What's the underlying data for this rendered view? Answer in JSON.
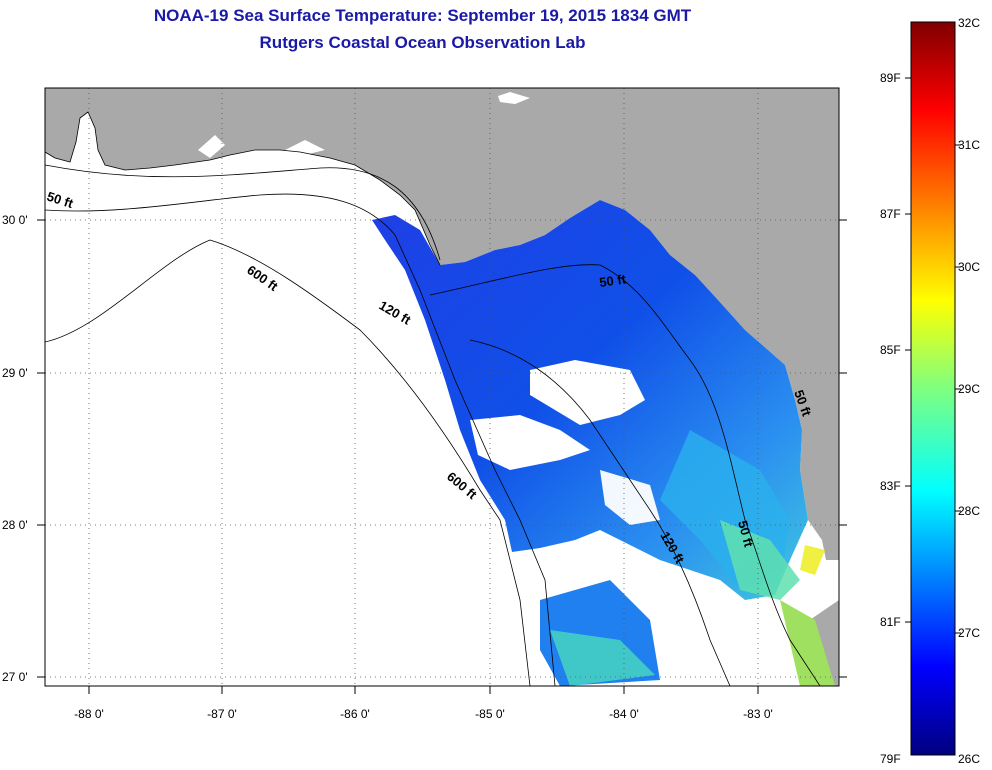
{
  "title": {
    "line1": "NOAA-19 Sea Surface Temperature:  September 19, 2015 1834 GMT",
    "line2": "Rutgers Coastal Ocean Observation Lab"
  },
  "map": {
    "lat_labels": [
      "30 0'",
      "29 0'",
      "28 0'",
      "27 0'"
    ],
    "lon_labels": [
      "-88 0'",
      "-87 0'",
      "-86 0'",
      "-85 0'",
      "-84 0'",
      "-83 0'"
    ],
    "depth_labels": [
      "50 ft",
      "600 ft",
      "120 ft",
      "50 ft",
      "600 ft",
      "120 ft",
      "50 ft",
      "50 ft"
    ],
    "colors": {
      "land": "#a9a9a9",
      "nodata": "#ffffff",
      "contour": "#000000"
    }
  },
  "colorbar": {
    "celsius": [
      "32C",
      "31C",
      "30C",
      "29C",
      "28C",
      "27C",
      "26C"
    ],
    "fahrenheit": [
      "89F",
      "87F",
      "85F",
      "83F",
      "81F",
      "79F"
    ]
  }
}
